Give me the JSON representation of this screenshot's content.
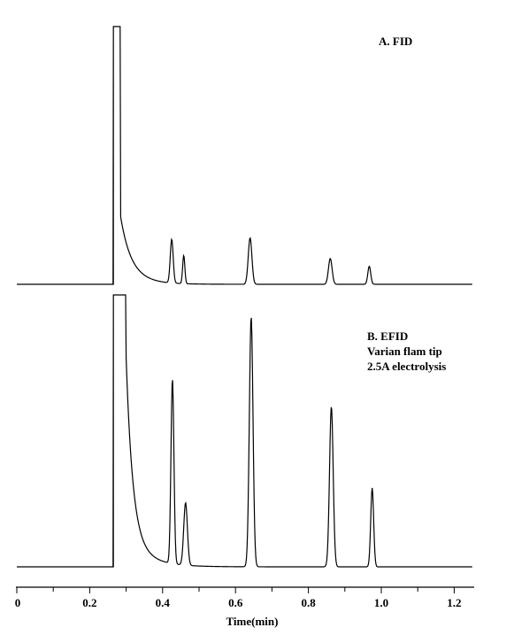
{
  "chart_data": {
    "type": "line",
    "xlabel": "Time(min)",
    "xlim": [
      0,
      1.24
    ],
    "x_ticks": [
      "0",
      "0.2",
      "0.4",
      "0.6",
      "0.8",
      "1.0",
      "1.2"
    ],
    "x_tick_values": [
      0,
      0.2,
      0.4,
      0.6,
      0.8,
      1.0,
      1.2
    ],
    "ylim": [
      0,
      100
    ],
    "series": [
      {
        "key": "fid",
        "annotation": [
          "A. FID"
        ],
        "off_scale_start": 0.265,
        "off_scale_end": 0.285,
        "peaks": [
          {
            "x": 0.425,
            "height": 17,
            "width": 0.004
          },
          {
            "x": 0.458,
            "height": 11,
            "width": 0.003
          },
          {
            "x": 0.64,
            "height": 18,
            "width": 0.005
          },
          {
            "x": 0.86,
            "height": 10,
            "width": 0.005
          },
          {
            "x": 0.967,
            "height": 7,
            "width": 0.004
          }
        ]
      },
      {
        "key": "efid",
        "annotation": [
          "B. EFID",
          "Varian flam tip",
          "2.5A electrolysis"
        ],
        "off_scale_start": 0.265,
        "off_scale_end": 0.3,
        "peaks": [
          {
            "x": 0.427,
            "height": 68,
            "width": 0.004
          },
          {
            "x": 0.463,
            "height": 23,
            "width": 0.005
          },
          {
            "x": 0.643,
            "height": 92,
            "width": 0.005
          },
          {
            "x": 0.863,
            "height": 59,
            "width": 0.005
          },
          {
            "x": 0.975,
            "height": 29,
            "width": 0.004
          }
        ]
      }
    ]
  }
}
